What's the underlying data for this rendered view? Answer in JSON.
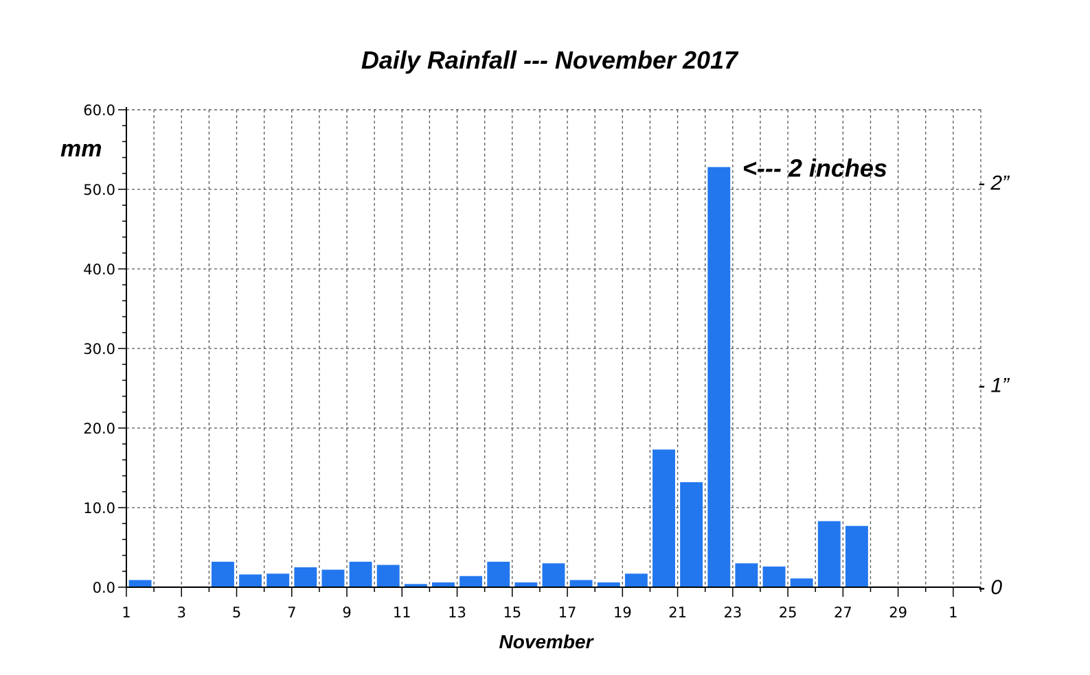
{
  "chart_data": {
    "type": "bar",
    "title": "Daily Rainfall --- November 2017",
    "ylabel": "mm",
    "xlabel": "November",
    "ylim": [
      0,
      60
    ],
    "yticks": [
      "0.0",
      "10.0",
      "20.0",
      "30.0",
      "40.0",
      "50.0",
      "60.0"
    ],
    "ytick_values": [
      0,
      10,
      20,
      30,
      40,
      50,
      60
    ],
    "xticks": [
      "1",
      "3",
      "5",
      "7",
      "9",
      "11",
      "13",
      "15",
      "17",
      "19",
      "21",
      "23",
      "25",
      "27",
      "29",
      "1"
    ],
    "grid": true,
    "bar_color": "#2277ee",
    "categories": [
      "1",
      "2",
      "3",
      "4",
      "5",
      "6",
      "7",
      "8",
      "9",
      "10",
      "11",
      "12",
      "13",
      "14",
      "15",
      "16",
      "17",
      "18",
      "19",
      "20",
      "21",
      "22",
      "23",
      "24",
      "25",
      "26",
      "27",
      "28",
      "29",
      "30",
      "31"
    ],
    "values": [
      0.9,
      0.1,
      0.1,
      3.2,
      1.6,
      1.7,
      2.5,
      2.2,
      3.2,
      2.8,
      0.4,
      0.6,
      1.4,
      3.2,
      0.6,
      3.0,
      0.9,
      0.6,
      1.7,
      17.3,
      13.2,
      52.8,
      3.0,
      2.6,
      1.1,
      8.3,
      7.7,
      0.1,
      0.1,
      0.1,
      0.1
    ],
    "right_axis": {
      "labels": [
        "- 0",
        "- 1”",
        "- 2”"
      ],
      "values_mm": [
        0,
        25.4,
        50.8
      ]
    },
    "annotation": {
      "text": "<--- 2 inches",
      "category": "22",
      "value": 52.8
    }
  }
}
